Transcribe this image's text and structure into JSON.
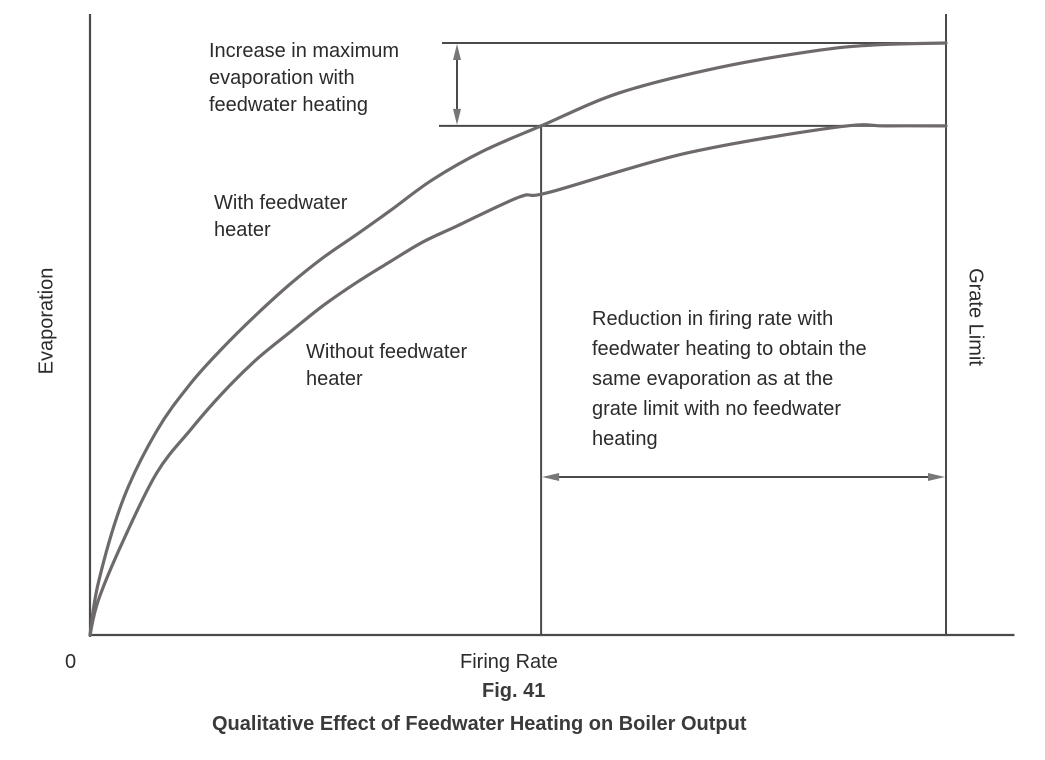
{
  "chart_data": {
    "type": "line",
    "title": "Qualitative Effect of Feedwater Heating on Boiler Output",
    "figure_label": "Fig. 41",
    "xlabel": "Firing Rate",
    "ylabel": "Evaporation",
    "origin_label": "0",
    "xlim": [
      0,
      108
    ],
    "ylim": [
      0,
      100
    ],
    "grid": false,
    "series": [
      {
        "name": "With feedwater heater",
        "label_lines": [
          "With feedwater",
          "heater"
        ],
        "x": [
          0,
          1,
          3.9,
          7.8,
          11.7,
          15.5,
          19.5,
          23.4,
          27.2,
          31.2,
          35.0,
          40.0,
          46.0,
          52.7,
          61.9,
          73.6,
          85.3,
          92,
          100
        ],
        "y": [
          0,
          9,
          23,
          34.5,
          42.4,
          48.5,
          54.2,
          59.3,
          63.7,
          67.7,
          71.6,
          76.9,
          81.8,
          86.0,
          91.6,
          95.9,
          98.8,
          99.7,
          100
        ]
      },
      {
        "name": "Without feedwater heater",
        "label_lines": [
          "Without feedwater",
          "heater"
        ],
        "x": [
          0,
          1,
          3.9,
          7.8,
          11.7,
          15.5,
          19.5,
          23.4,
          27.2,
          31.2,
          35.0,
          38.9,
          42.9,
          50.2,
          53.7,
          69.7,
          87.3,
          93,
          100
        ],
        "y": [
          0,
          6,
          16,
          27.4,
          34.6,
          40.9,
          46.6,
          51.2,
          55.6,
          59.6,
          63.0,
          66.4,
          69.1,
          74.0,
          74.8,
          81.4,
          85.8,
          86.0,
          86.0
        ]
      }
    ],
    "reference_lines": {
      "grate_limit_x": 100,
      "reduced_firing_rate_x": 52.7,
      "max_evaporation_with_heater": 100,
      "max_evaporation_without_heater": 86.0
    },
    "annotations": {
      "grate_limit": "Grate Limit",
      "increase_lines": [
        "Increase in maximum",
        "evaporation with",
        "feedwater heating"
      ],
      "reduction_lines": [
        "Reduction in firing rate with",
        "feedwater heating to obtain the",
        "same evaporation as at the",
        "grate limit with no feedwater",
        "heating"
      ]
    },
    "colors": {
      "curve": "#6e6a6b",
      "axis": "#4a4a4a",
      "text": "#2b2b2b"
    }
  }
}
